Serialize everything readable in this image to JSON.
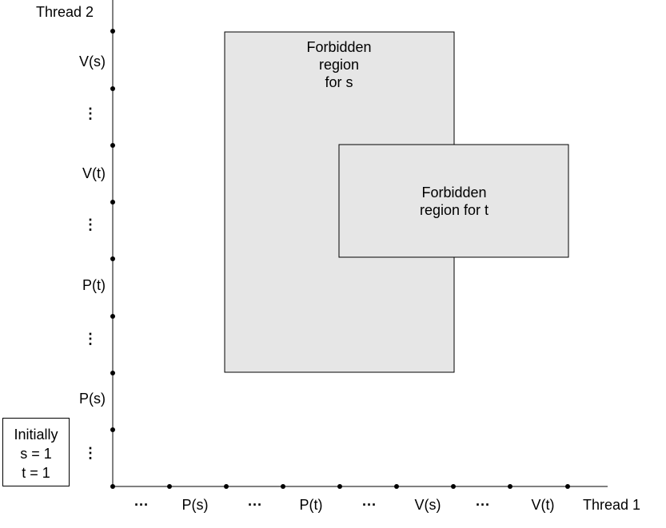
{
  "y_axis": {
    "title": "Thread 2",
    "labels": [
      "⋮",
      "P(s)",
      "⋮",
      "P(t)",
      "⋮",
      "V(t)",
      "⋮",
      "V(s)"
    ]
  },
  "x_axis": {
    "title": "Thread 1",
    "labels": [
      "···",
      "P(s)",
      "···",
      "P(t)",
      "···",
      "V(s)",
      "···",
      "V(t)"
    ]
  },
  "regions": [
    {
      "id": "s",
      "label": "Forbidden\nregion\nfor s",
      "fill": "#e6e6e6"
    },
    {
      "id": "t",
      "label": "Forbidden\nregion for t",
      "fill": "#e6e6e6"
    }
  ],
  "initial_box": {
    "lines": [
      "Initially",
      "s = 1",
      "t = 1"
    ]
  },
  "colors": {
    "axis": "#000000",
    "region_fill": "#e6e6e6",
    "region_stroke": "#000000"
  }
}
